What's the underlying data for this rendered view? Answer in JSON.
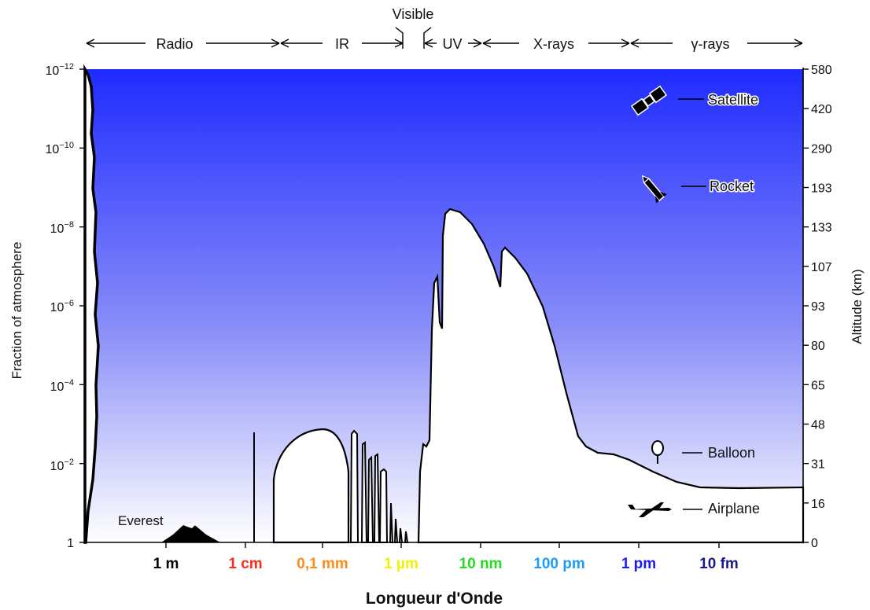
{
  "chart_data": {
    "type": "area",
    "title": "",
    "xlabel": "Longueur d'Onde",
    "ylabel_left": "Fraction of atmosphere",
    "ylabel_right": "Altitude (km)",
    "bands": [
      {
        "label": "Radio"
      },
      {
        "label": "IR"
      },
      {
        "label": "Visible"
      },
      {
        "label": "UV"
      },
      {
        "label": "X-rays"
      },
      {
        "label": "γ-rays"
      }
    ],
    "x_ticks": [
      {
        "label": "1 m",
        "color": "#000000"
      },
      {
        "label": "1 cm",
        "color": "#ff2a1a"
      },
      {
        "label": "0,1 mm",
        "color": "#ff8c1a"
      },
      {
        "label": "1 µm",
        "color": "#f2f200"
      },
      {
        "label": "10 nm",
        "color": "#22dd22"
      },
      {
        "label": "100 pm",
        "color": "#1a9cff"
      },
      {
        "label": "1 pm",
        "color": "#1a1aff"
      },
      {
        "label": "10 fm",
        "color": "#1a1a8c"
      }
    ],
    "y_ticks_left": [
      {
        "base": "10",
        "exp": "−12"
      },
      {
        "base": "10",
        "exp": "−10"
      },
      {
        "base": "10",
        "exp": "−8"
      },
      {
        "base": "10",
        "exp": "−6"
      },
      {
        "base": "10",
        "exp": "−4"
      },
      {
        "base": "10",
        "exp": "−2"
      },
      {
        "base": "1",
        "exp": ""
      }
    ],
    "y_ticks_right": [
      "580",
      "420",
      "290",
      "193",
      "133",
      "107",
      "93",
      "80",
      "65",
      "48",
      "31",
      "16",
      "0"
    ],
    "annotations": [
      {
        "label": "Satellite",
        "icon": "satellite-icon"
      },
      {
        "label": "Rocket",
        "icon": "rocket-icon"
      },
      {
        "label": "Balloon",
        "icon": "balloon-icon"
      },
      {
        "label": "Airplane",
        "icon": "airplane-icon"
      },
      {
        "label": "Everest",
        "icon": "mountain-icon"
      }
    ],
    "colors": {
      "sky_top": "#1f2bff",
      "sky_bottom": "#ffffff",
      "curve": "#000000"
    }
  }
}
